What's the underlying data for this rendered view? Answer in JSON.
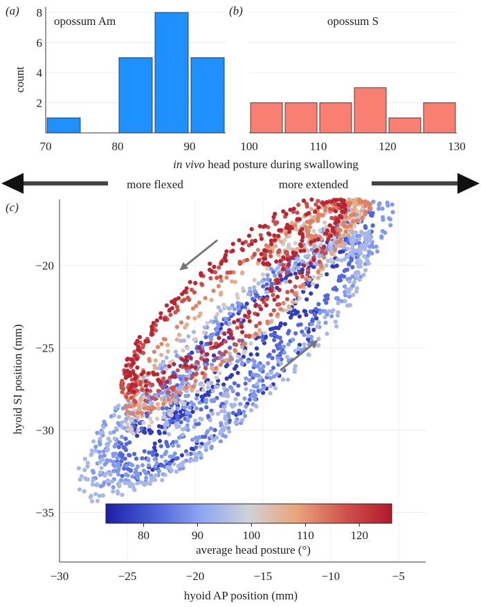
{
  "chart_data": [
    {
      "id": "a",
      "panel_label": "(a)",
      "type": "bar",
      "title": "opossum Am",
      "ylabel": "count",
      "xlim": [
        70,
        95
      ],
      "ylim": [
        0,
        8
      ],
      "xticks": [
        70,
        80,
        90
      ],
      "yticks": [
        2,
        4,
        6,
        8
      ],
      "bin_width": 5,
      "bar_color": "#1e90ff",
      "bins": [
        {
          "start": 70,
          "count": 1
        },
        {
          "start": 75,
          "count": 0
        },
        {
          "start": 80,
          "count": 5
        },
        {
          "start": 85,
          "count": 8
        },
        {
          "start": 90,
          "count": 5
        }
      ]
    },
    {
      "id": "b",
      "panel_label": "(b)",
      "type": "bar",
      "title": "opossum S",
      "xlim": [
        100,
        130
      ],
      "ylim": [
        0,
        8
      ],
      "xticks": [
        100,
        110,
        120,
        130
      ],
      "yticks": [
        2,
        4,
        6,
        8
      ],
      "bin_width": 5,
      "bar_color": "#f87f72",
      "bins": [
        {
          "start": 100,
          "count": 2
        },
        {
          "start": 105,
          "count": 2
        },
        {
          "start": 110,
          "count": 2
        },
        {
          "start": 115,
          "count": 3
        },
        {
          "start": 120,
          "count": 1
        },
        {
          "start": 125,
          "count": 2
        }
      ]
    },
    {
      "id": "c",
      "panel_label": "(c)",
      "type": "scatter",
      "xlabel": "hyoid AP position (mm)",
      "ylabel": "hyoid SI position (mm)",
      "xlim": [
        -30,
        -3
      ],
      "ylim": [
        -38,
        -16
      ],
      "xticks": [
        -30,
        -25,
        -20,
        -15,
        -10,
        -5
      ],
      "yticks": [
        -35,
        -30,
        -25,
        -20
      ],
      "colorbar": {
        "label": "average head posture (°)",
        "range": [
          73,
          126
        ],
        "ticks": [
          80,
          90,
          100,
          110,
          120
        ],
        "colors": [
          "#1c1ea8",
          "#4a5fd8",
          "#8ea6f3",
          "#cfd2d6",
          "#e9a57c",
          "#d1544d",
          "#b2182b"
        ]
      },
      "groups": [
        {
          "posture": 77,
          "comment": "dark blue, low-flexed trials",
          "loops": [
            {
              "cx": -17.8,
              "cy": -25.2,
              "ax": 8.0,
              "ay": 1.3,
              "angle": 38,
              "n": 95
            },
            {
              "cx": -15.2,
              "cy": -23.6,
              "ax": 8.5,
              "ay": 1.1,
              "angle": 40,
              "n": 90
            },
            {
              "cx": -17.2,
              "cy": -27.5,
              "ax": 7.5,
              "ay": 1.5,
              "angle": 37,
              "n": 80
            }
          ]
        },
        {
          "posture": 83,
          "loops": [
            {
              "cx": -16.8,
              "cy": -25.2,
              "ax": 10.5,
              "ay": 2.0,
              "angle": 37,
              "n": 130
            },
            {
              "cx": -14.6,
              "cy": -23.2,
              "ax": 9.5,
              "ay": 1.8,
              "angle": 39,
              "n": 120
            },
            {
              "cx": -19.6,
              "cy": -28.5,
              "ax": 7.0,
              "ay": 1.9,
              "angle": 34,
              "n": 95
            }
          ]
        },
        {
          "posture": 89,
          "loops": [
            {
              "cx": -17.2,
              "cy": -25.7,
              "ax": 12.0,
              "ay": 2.6,
              "angle": 36,
              "n": 150
            },
            {
              "cx": -20.6,
              "cy": -29.3,
              "ax": 6.0,
              "ay": 2.4,
              "angle": 30,
              "n": 105
            },
            {
              "cx": -13.4,
              "cy": -22.4,
              "ax": 9.5,
              "ay": 2.2,
              "angle": 38,
              "n": 125
            },
            {
              "cx": -23.8,
              "cy": -30.0,
              "ax": 3.5,
              "ay": 1.9,
              "angle": 20,
              "n": 65
            }
          ]
        },
        {
          "posture": 94,
          "loops": [
            {
              "cx": -17.8,
              "cy": -26.3,
              "ax": 12.5,
              "ay": 3.1,
              "angle": 35,
              "n": 160
            },
            {
              "cx": -22.2,
              "cy": -30.3,
              "ax": 5.0,
              "ay": 2.3,
              "angle": 25,
              "n": 95
            },
            {
              "cx": -9.3,
              "cy": -19.0,
              "ax": 2.2,
              "ay": 0.6,
              "angle": 20,
              "n": 55
            },
            {
              "cx": -14.8,
              "cy": -24.3,
              "ax": 9.0,
              "ay": 2.0,
              "angle": 37,
              "n": 110
            }
          ]
        },
        {
          "posture": 101,
          "loops": [
            {
              "cx": -16.6,
              "cy": -23.5,
              "ax": 10.0,
              "ay": 1.5,
              "angle": 38,
              "n": 110
            },
            {
              "cx": -10.5,
              "cy": -17.8,
              "ax": 3.0,
              "ay": 0.9,
              "angle": 20,
              "n": 55
            }
          ]
        },
        {
          "posture": 107,
          "loops": [
            {
              "cx": -16.1,
              "cy": -22.4,
              "ax": 10.5,
              "ay": 1.8,
              "angle": 37,
              "n": 120
            },
            {
              "cx": -11.2,
              "cy": -17.6,
              "ax": 3.5,
              "ay": 0.9,
              "angle": 25,
              "n": 60
            }
          ]
        },
        {
          "posture": 112,
          "loops": [
            {
              "cx": -16.8,
              "cy": -22.6,
              "ax": 10.0,
              "ay": 2.0,
              "angle": 37,
              "n": 120
            },
            {
              "cx": -9.5,
              "cy": -17.2,
              "ax": 2.5,
              "ay": 0.7,
              "angle": 20,
              "n": 60
            }
          ]
        },
        {
          "posture": 118,
          "loops": [
            {
              "cx": -17.2,
              "cy": -22.1,
              "ax": 9.5,
              "ay": 2.3,
              "angle": 36,
              "n": 120
            },
            {
              "cx": -19.2,
              "cy": -23.3,
              "ax": 7.0,
              "ay": 1.8,
              "angle": 33,
              "n": 90
            }
          ]
        },
        {
          "posture": 124,
          "loops": [
            {
              "cx": -17.0,
              "cy": -21.5,
              "ax": 9.5,
              "ay": 2.2,
              "angle": 36,
              "n": 120
            },
            {
              "cx": -18.6,
              "cy": -22.3,
              "ax": 7.5,
              "ay": 1.9,
              "angle": 34,
              "n": 90
            },
            {
              "cx": -12.0,
              "cy": -18.0,
              "ax": 3.5,
              "ay": 0.9,
              "angle": 30,
              "n": 55
            }
          ]
        }
      ]
    }
  ],
  "shared": {
    "xlabel_italic": "in vivo",
    "xlabel_rest": " head posture during swallowing",
    "left_arrow_label": "more flexed",
    "right_arrow_label": "more extended"
  }
}
